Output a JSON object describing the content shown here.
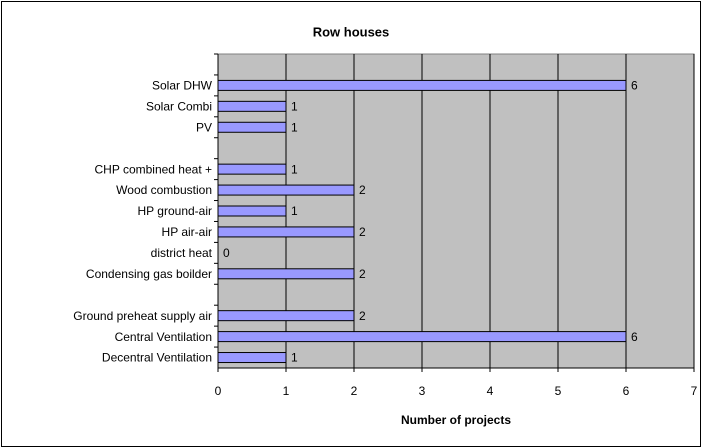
{
  "chart_data": {
    "type": "hbar",
    "title": "Row houses",
    "x_label": "Number of projects",
    "categories": [
      null,
      "Solar DHW",
      "Solar Combi",
      "PV",
      null,
      "CHP combined heat +",
      "Wood combustion",
      "HP ground-air",
      "HP air-air",
      "district heat",
      "Condensing gas boilder",
      null,
      "Ground preheat supply air",
      "Central Ventilation",
      "Decentral Ventilation"
    ],
    "values": [
      null,
      6,
      1,
      1,
      null,
      1,
      2,
      1,
      2,
      0,
      2,
      null,
      2,
      6,
      1
    ],
    "color": "#9999ff",
    "xlim": [
      0,
      7
    ],
    "xticks": [
      0,
      1,
      2,
      3,
      4,
      5,
      6,
      7
    ],
    "grid": true
  }
}
